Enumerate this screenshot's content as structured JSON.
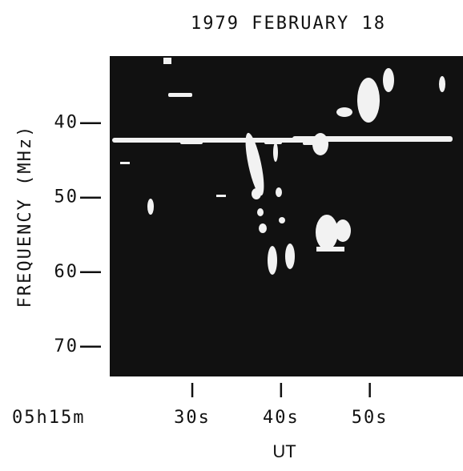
{
  "chart_data": {
    "type": "spectrogram",
    "title": "1979 FEBRUARY 18",
    "y_label": "FREQUENCY (MHz)",
    "x_label": "UT",
    "x_origin_label": "05h15m",
    "xlim": [
      20.7,
      60.5
    ],
    "xticks": [
      {
        "value": 30,
        "label": "30s"
      },
      {
        "value": 40,
        "label": "40s"
      },
      {
        "value": 50,
        "label": "50s"
      }
    ],
    "ylim": [
      31,
      74
    ],
    "y_inverted": true,
    "yticks": [
      40,
      50,
      60,
      70
    ],
    "background": "#111111",
    "burst_color": "#f2f2f2"
  }
}
